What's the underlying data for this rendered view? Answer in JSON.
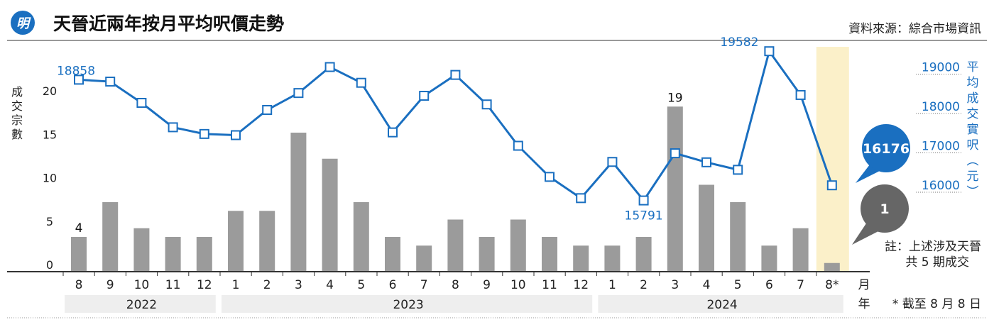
{
  "header": {
    "logo_text": "明",
    "title": "天晉近兩年按月平均呎價走勢",
    "source": "資料來源：綜合市場資訊"
  },
  "chart_data": {
    "type": "bar+line",
    "title": "天晉近兩年按月平均呎價走勢",
    "months": [
      "8",
      "9",
      "10",
      "11",
      "12",
      "1",
      "2",
      "3",
      "4",
      "5",
      "6",
      "7",
      "8",
      "9",
      "10",
      "11",
      "12",
      "1",
      "2",
      "3",
      "4",
      "5",
      "6",
      "7",
      "8*"
    ],
    "years": [
      {
        "label": "2022",
        "span": 5
      },
      {
        "label": "2023",
        "span": 12
      },
      {
        "label": "2024",
        "span": 8
      }
    ],
    "x_unit_month": "月",
    "x_unit_year": "年",
    "left_axis": {
      "label": "成交宗數",
      "ticks": [
        0,
        5,
        10,
        15,
        20
      ],
      "ylim": [
        0,
        25
      ]
    },
    "right_axis": {
      "label": "平均成交實呎（元）",
      "ticks": [
        16000,
        17000,
        18000,
        19000
      ]
    },
    "series": [
      {
        "type": "bar",
        "axis": "left",
        "color": "#9b9b9b",
        "values": [
          4,
          8,
          5,
          4,
          4,
          7,
          7,
          16,
          13,
          8,
          4,
          3,
          6,
          4,
          6,
          4,
          3,
          3,
          4,
          19,
          10,
          8,
          3,
          5,
          1
        ]
      },
      {
        "type": "line",
        "axis": "right",
        "color": "#1a6fc0",
        "values": [
          18858,
          18810,
          18270,
          17650,
          17480,
          17450,
          18090,
          18520,
          19180,
          18780,
          17520,
          18450,
          18980,
          18230,
          17180,
          16390,
          15850,
          16770,
          15791,
          16990,
          16760,
          16570,
          19582,
          18470,
          16176
        ]
      }
    ],
    "data_labels": [
      {
        "index": 0,
        "text": "4"
      },
      {
        "index": 19,
        "text": "19"
      },
      {
        "index": 0,
        "text": "18858"
      },
      {
        "index": 18,
        "text": "15791"
      },
      {
        "index": 22,
        "text": "19582"
      }
    ],
    "callouts": {
      "price": "16176",
      "count": "1"
    },
    "highlight_index": 24,
    "note": "註：上述涉及天晉",
    "note2": "共 5 期成交",
    "footnote": "* 截至 8 月 8 日"
  }
}
